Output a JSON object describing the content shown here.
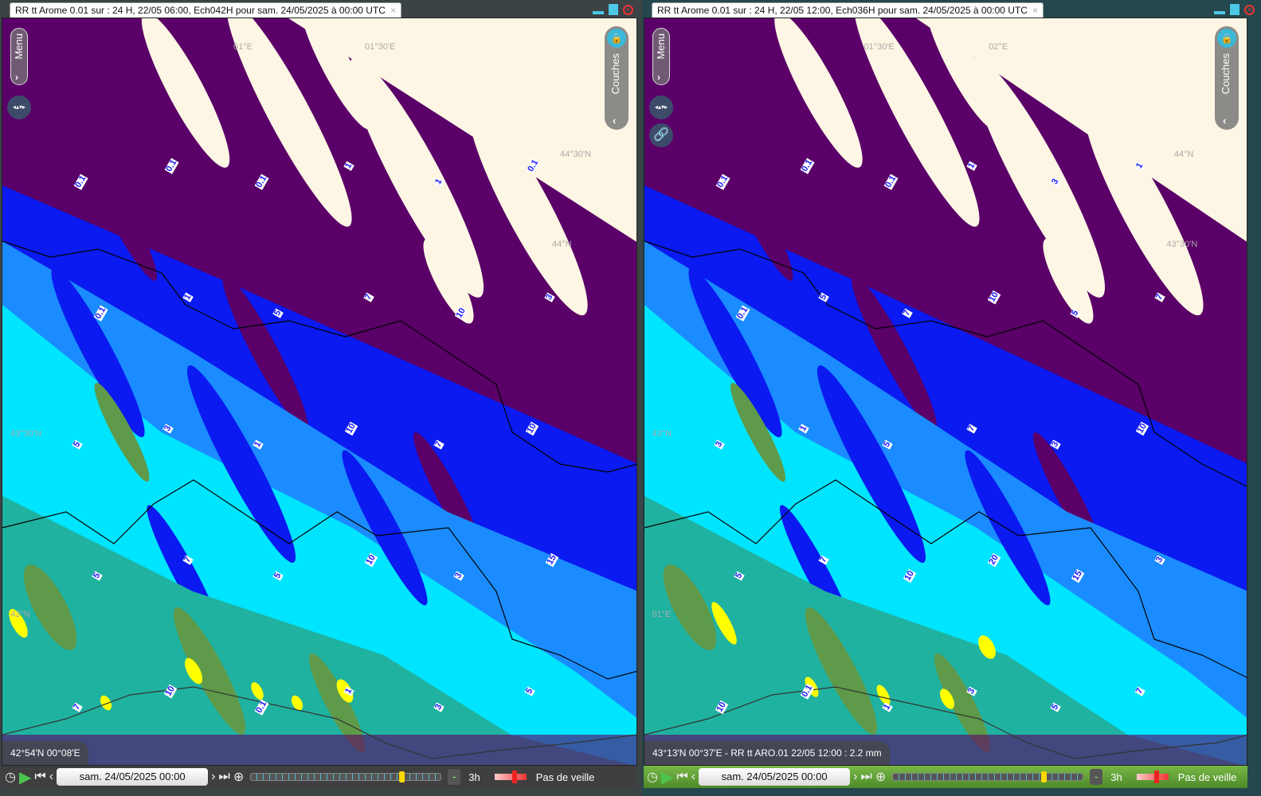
{
  "colors": {
    "cream": "#fdf6e4",
    "purple": "#5a0068",
    "blue": "#0a1af0",
    "mid_blue": "#1a8cff",
    "cyan": "#00e5ff",
    "teal": "#20b2a0",
    "green": "#5f9a4a",
    "olive": "#8a9a30",
    "yellow": "#ffff00"
  },
  "panels": [
    {
      "title": "RR tt Arome 0.01 sur : 24 H, 22/05 06:00, Ech042H pour sam. 24/05/2025 à 00:00 UTC",
      "close": "×",
      "menu": "Menu",
      "layers": "Couches",
      "coord": "42°54'N 00°08'E",
      "date": "sam. 24/05/2025 00:00",
      "step": "3h",
      "watch": "Pas de veille",
      "grid": [
        "44°30'N",
        "44°N",
        "43°30'N",
        "43°N",
        "01°E",
        "01°30'E"
      ],
      "contours": [
        "0.1",
        "0.1",
        "0.1",
        "1",
        "1",
        "0.1",
        "0.1",
        "1",
        "5",
        "7",
        "10",
        "3",
        "5",
        "3",
        "1",
        "10",
        "7",
        "10",
        "5",
        "7",
        "5",
        "10",
        "3",
        "15",
        "7",
        "10",
        "0.1",
        "1",
        "3",
        "5"
      ]
    },
    {
      "title": "RR tt Arome 0.01 sur : 24 H, 22/05 12:00, Ech036H pour sam. 24/05/2025 à 00:00 UTC",
      "close": "×",
      "menu": "Menu",
      "layers": "Couches",
      "coord": "43°13'N 00°37'E -  RR tt ARO.01 22/05 12:00 : 2.2 mm",
      "date": "sam. 24/05/2025 00:00",
      "step": "3h",
      "watch": "Pas de veille",
      "grid": [
        "44°N",
        "43°30'N",
        "43°N",
        "01°E",
        "01°30'E",
        "02°E"
      ],
      "contours": [
        "0.1",
        "0.1",
        "0.1",
        "1",
        "3",
        "1",
        "0.1",
        "5",
        "7",
        "10",
        "5",
        "7",
        "3",
        "1",
        "5",
        "7",
        "3",
        "10",
        "5",
        "7",
        "10",
        "20",
        "15",
        "3",
        "10",
        "0.1",
        "1",
        "3",
        "5",
        "7"
      ]
    }
  ]
}
